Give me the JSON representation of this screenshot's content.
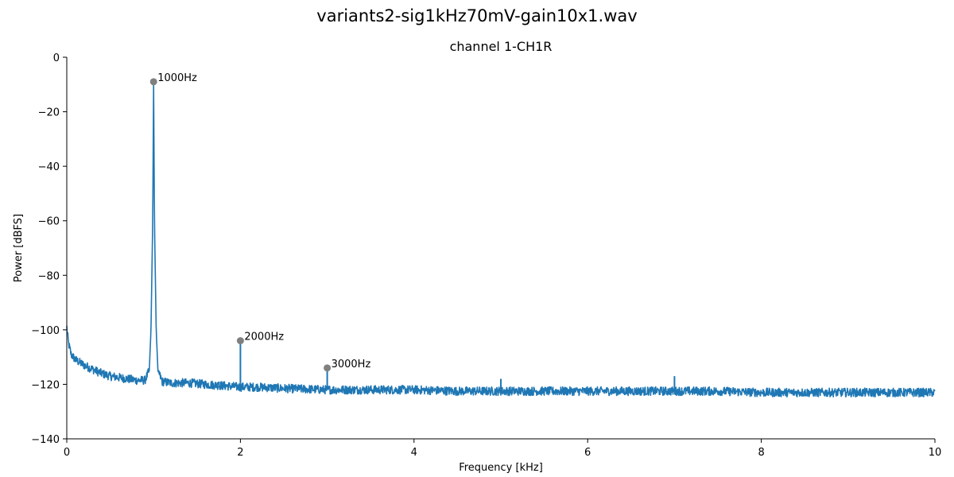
{
  "figure": {
    "title": "variants2-sig1kHz70mV-gain10x1.wav"
  },
  "chart_data": {
    "type": "line",
    "title": "channel 1-CH1R",
    "xlabel": "Frequency [kHz]",
    "ylabel": "Power [dBFS]",
    "xlim": [
      0,
      10
    ],
    "ylim": [
      -140,
      0
    ],
    "xticks": [
      0,
      2,
      4,
      6,
      8,
      10
    ],
    "yticks": [
      0,
      -20,
      -40,
      -60,
      -80,
      -100,
      -120,
      -140
    ],
    "grid": false,
    "line_color": "#1f77b4",
    "marker_color": "#808080",
    "series": [
      {
        "x": [
          0.0,
          0.02,
          0.05,
          0.1,
          0.2,
          0.3,
          0.4,
          0.5,
          0.6,
          0.7,
          0.8,
          0.9,
          0.95,
          0.97,
          0.99,
          1.0,
          1.01,
          1.03,
          1.05,
          1.1,
          1.2,
          1.4,
          1.6,
          1.8,
          2.0,
          2.2,
          2.5,
          3.0,
          3.5,
          4.0,
          4.5,
          5.0,
          5.5,
          6.0,
          6.5,
          7.0,
          7.5,
          8.0,
          8.5,
          9.0,
          9.5,
          10.0
        ],
        "y": [
          -99,
          -105,
          -109,
          -111,
          -113,
          -114.5,
          -116,
          -117,
          -117.5,
          -118,
          -118.5,
          -118.5,
          -115,
          -100,
          -60,
          -9,
          -60,
          -100,
          -115,
          -119,
          -119.5,
          -119.5,
          -120,
          -120.5,
          -121,
          -121,
          -121.5,
          -122,
          -122,
          -122,
          -122.5,
          -122.5,
          -122.5,
          -122.5,
          -122.5,
          -122.5,
          -122.5,
          -123,
          -123,
          -123,
          -123,
          -123
        ]
      }
    ],
    "spikes": [
      {
        "x": 1.75,
        "y": -119
      },
      {
        "x": 2.0,
        "y": -104
      },
      {
        "x": 3.0,
        "y": -114
      },
      {
        "x": 5.0,
        "y": -118
      },
      {
        "x": 7.0,
        "y": -117
      }
    ],
    "peaks": [
      {
        "x": 1.0,
        "y": -9,
        "label": "1000Hz"
      },
      {
        "x": 2.0,
        "y": -104,
        "label": "2000Hz"
      },
      {
        "x": 3.0,
        "y": -114,
        "label": "3000Hz"
      }
    ]
  }
}
